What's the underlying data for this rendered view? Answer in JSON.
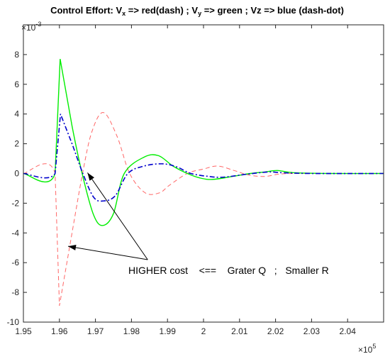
{
  "chart_data": {
    "type": "line",
    "title": {
      "prefix": "Control Effort:  V",
      "x_sub": "x",
      "mid1": " => red(dash) ;  V",
      "y_sub": "y",
      "rest": " => green ; Vz => blue (dash-dot)"
    },
    "x_scale_label": "×10",
    "x_scale_exp": "5",
    "y_scale_label": "×10",
    "y_scale_exp": "-3",
    "xlim": [
      1.95,
      2.05
    ],
    "ylim": [
      -10,
      10
    ],
    "x_ticks": [
      "1.95",
      "1.96",
      "1.97",
      "1.98",
      "1.99",
      "2",
      "2.01",
      "2.02",
      "2.03",
      "2.04"
    ],
    "x_tick_values": [
      1.95,
      1.96,
      1.97,
      1.98,
      1.99,
      2.0,
      2.01,
      2.02,
      2.03,
      2.04
    ],
    "y_ticks": [
      "-10",
      "-8",
      "-6",
      "-4",
      "-2",
      "0",
      "2",
      "4",
      "6",
      "8"
    ],
    "y_tick_values": [
      -10,
      -8,
      -6,
      -4,
      -2,
      0,
      2,
      4,
      6,
      8
    ],
    "annotation": "HIGHER cost    <==    Grater Q   ;   Smaller R",
    "series": [
      {
        "color": "#ff6666",
        "style": "dash",
        "x": [
          1.95,
          1.9588,
          1.96,
          1.9635,
          1.9665,
          1.969,
          1.9722,
          1.976,
          1.9795,
          1.9838,
          1.9878,
          1.9905,
          1.9955,
          2.0,
          2.004,
          2.0085,
          2.0125,
          2.017,
          2.0207,
          2.025,
          2.035,
          2.05
        ],
        "values": [
          0,
          0,
          -8.9,
          -4.0,
          0.1,
          2.8,
          4.1,
          2.5,
          0.0,
          -1.3,
          -1.3,
          -0.8,
          0.0,
          0.3,
          0.5,
          0.2,
          -0.1,
          -0.2,
          -0.05,
          0.0,
          0.0,
          0.0
        ]
      },
      {
        "color": "#00ee00",
        "style": "solid",
        "x": [
          1.95,
          1.9588,
          1.9602,
          1.9635,
          1.9665,
          1.9695,
          1.972,
          1.975,
          1.978,
          1.9835,
          1.9875,
          1.9915,
          1.9955,
          1.999,
          2.0025,
          2.008,
          2.013,
          2.017,
          2.0205,
          2.025,
          2.035,
          2.05
        ],
        "values": [
          0,
          0,
          7.7,
          3.2,
          -0.2,
          -2.8,
          -3.5,
          -2.7,
          0.0,
          1.1,
          1.2,
          0.5,
          0.0,
          -0.3,
          -0.4,
          -0.2,
          0.0,
          0.1,
          0.2,
          0.05,
          0.0,
          0.0
        ]
      },
      {
        "color": "#0000cc",
        "style": "dashdot",
        "x": [
          1.95,
          1.9588,
          1.9603,
          1.9635,
          1.9665,
          1.9695,
          1.9722,
          1.9755,
          1.979,
          1.9835,
          1.9885,
          1.9925,
          1.9965,
          2.0015,
          2.0055,
          2.012,
          2.018,
          2.022,
          2.03,
          2.05
        ],
        "values": [
          0,
          0,
          4.0,
          2.0,
          0.0,
          -1.6,
          -1.85,
          -1.5,
          0.0,
          0.5,
          0.65,
          0.45,
          0.0,
          -0.2,
          -0.25,
          -0.05,
          0.1,
          0.05,
          0.0,
          0.0
        ]
      }
    ],
    "arrows": [
      {
        "from": [
          1.9845,
          -5.8
        ],
        "to": [
          1.9624,
          -4.9
        ]
      },
      {
        "from": [
          1.9845,
          -5.8
        ],
        "to": [
          1.9678,
          0.05
        ]
      }
    ]
  }
}
